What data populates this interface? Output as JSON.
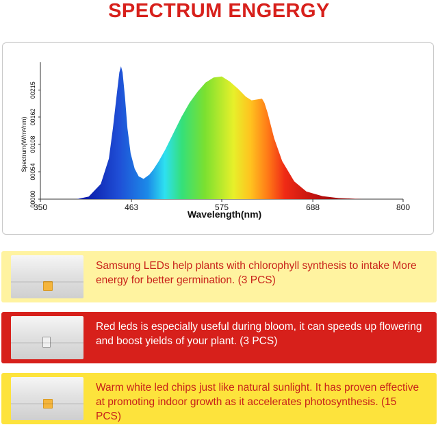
{
  "title": "SPECTRUM ENGERGY",
  "chart_data": {
    "type": "area",
    "xlabel": "Wavelength(nm)",
    "ylabel": "Spectrum(W/m²/nm)",
    "xlim": [
      350,
      800
    ],
    "ylim": [
      0,
      0.0027
    ],
    "x_ticks": [
      "350",
      "463",
      "575",
      "688",
      "800"
    ],
    "y_ticks": [
      "00000",
      "00054",
      "00108",
      "00162",
      "00215"
    ],
    "y_tick_values": [
      0,
      0.00054,
      0.00108,
      0.00162,
      0.00215
    ],
    "x": [
      350,
      395,
      410,
      425,
      435,
      440,
      445,
      448,
      450,
      452,
      455,
      458,
      462,
      467,
      472,
      478,
      485,
      490,
      497,
      505,
      515,
      525,
      535,
      545,
      555,
      565,
      575,
      585,
      595,
      600,
      605,
      612,
      620,
      625,
      628,
      632,
      640,
      650,
      665,
      680,
      700,
      720,
      750,
      780,
      800
    ],
    "values": [
      0,
      0,
      5e-05,
      0.0003,
      0.0008,
      0.0014,
      0.0021,
      0.0025,
      0.00262,
      0.0025,
      0.002,
      0.0014,
      0.0009,
      0.0006,
      0.00045,
      0.0004,
      0.00048,
      0.00058,
      0.00075,
      0.00098,
      0.0013,
      0.00162,
      0.0019,
      0.00212,
      0.0023,
      0.0024,
      0.00242,
      0.00232,
      0.00218,
      0.0021,
      0.00202,
      0.00195,
      0.00197,
      0.00198,
      0.0019,
      0.0017,
      0.0012,
      0.00075,
      0.00035,
      0.00015,
      6e-05,
      2e-05,
      0,
      0,
      0
    ]
  },
  "colors": {
    "title": "#d7201b",
    "band_yellow": "#fff3a0",
    "band_red": "#d7201b",
    "band_gold": "#fde33c",
    "text_red": "#c8221a",
    "text_white": "#ffffff"
  },
  "bands": [
    {
      "text": "Samsung LEDs help plants with chlorophyll synthesis to intake More energy for better germination. (3 PCS)",
      "chip": "warm-white-led-chip-icon"
    },
    {
      "text": "Red leds is especially useful during bloom, it can speeds up flowering and boost yields of your plant. (3 PCS)",
      "chip": "red-led-chip-icon"
    },
    {
      "text": "Warm white led chips just like natural sunlight. It has proven effective at promoting indoor growth as it accelerates photosynthesis. (15 PCS)",
      "chip": "warm-white-led-chip-icon"
    }
  ]
}
